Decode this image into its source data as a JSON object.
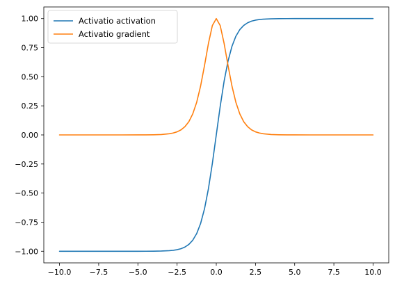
{
  "chart_data": {
    "type": "line",
    "title": "",
    "xlabel": "",
    "ylabel": "",
    "xlim": [
      -11,
      11
    ],
    "ylim": [
      -1.1,
      1.1
    ],
    "xticks": [
      -10.0,
      -7.5,
      -5.0,
      -2.5,
      0.0,
      2.5,
      5.0,
      7.5,
      10.0
    ],
    "xtick_labels": [
      "−10.0",
      "−7.5",
      "−5.0",
      "−2.5",
      "0.0",
      "2.5",
      "5.0",
      "7.5",
      "10.0"
    ],
    "yticks": [
      1.0,
      0.75,
      0.5,
      0.25,
      0.0,
      -0.25,
      -0.5,
      -0.75,
      -1.0
    ],
    "ytick_labels": [
      "1.00",
      "0.75",
      "0.50",
      "0.25",
      "0.00",
      "−0.25",
      "−0.50",
      "−0.75",
      "−1.00"
    ],
    "grid": false,
    "legend_position": "top-left",
    "x": [
      -10,
      -9,
      -8,
      -7,
      -6,
      -5,
      -4.5,
      -4,
      -3.5,
      -3,
      -2.75,
      -2.5,
      -2.25,
      -2,
      -1.75,
      -1.5,
      -1.25,
      -1,
      -0.75,
      -0.5,
      -0.25,
      0,
      0.25,
      0.5,
      0.75,
      1,
      1.25,
      1.5,
      1.75,
      2,
      2.25,
      2.5,
      2.75,
      3,
      3.5,
      4,
      4.5,
      5,
      6,
      7,
      8,
      9,
      10
    ],
    "series": [
      {
        "name": "Activatio activation",
        "color": "#1f77b4",
        "values": [
          -1.0,
          -1.0,
          -1.0,
          -1.0,
          -1.0,
          -1.0,
          -0.9998,
          -0.9993,
          -0.9982,
          -0.995,
          -0.9918,
          -0.9866,
          -0.978,
          -0.964,
          -0.9414,
          -0.9051,
          -0.8483,
          -0.7616,
          -0.6351,
          -0.4621,
          -0.2449,
          0.0,
          0.2449,
          0.4621,
          0.6351,
          0.7616,
          0.8483,
          0.9051,
          0.9414,
          0.964,
          0.978,
          0.9866,
          0.9918,
          0.995,
          0.9982,
          0.9993,
          0.9998,
          1.0,
          1.0,
          1.0,
          1.0,
          1.0,
          1.0
        ]
      },
      {
        "name": "Activatio gradient",
        "color": "#ff7f0e",
        "values": [
          0.0,
          0.0,
          0.0,
          0.0,
          0.0,
          0.0002,
          0.0005,
          0.0013,
          0.0036,
          0.0099,
          0.0163,
          0.0266,
          0.0434,
          0.0707,
          0.1138,
          0.1807,
          0.2805,
          0.42,
          0.5966,
          0.7864,
          0.94,
          1.0,
          0.94,
          0.7864,
          0.5966,
          0.42,
          0.2805,
          0.1807,
          0.1138,
          0.0707,
          0.0434,
          0.0266,
          0.0163,
          0.0099,
          0.0036,
          0.0013,
          0.0005,
          0.0002,
          0.0,
          0.0,
          0.0,
          0.0,
          0.0
        ]
      }
    ]
  }
}
